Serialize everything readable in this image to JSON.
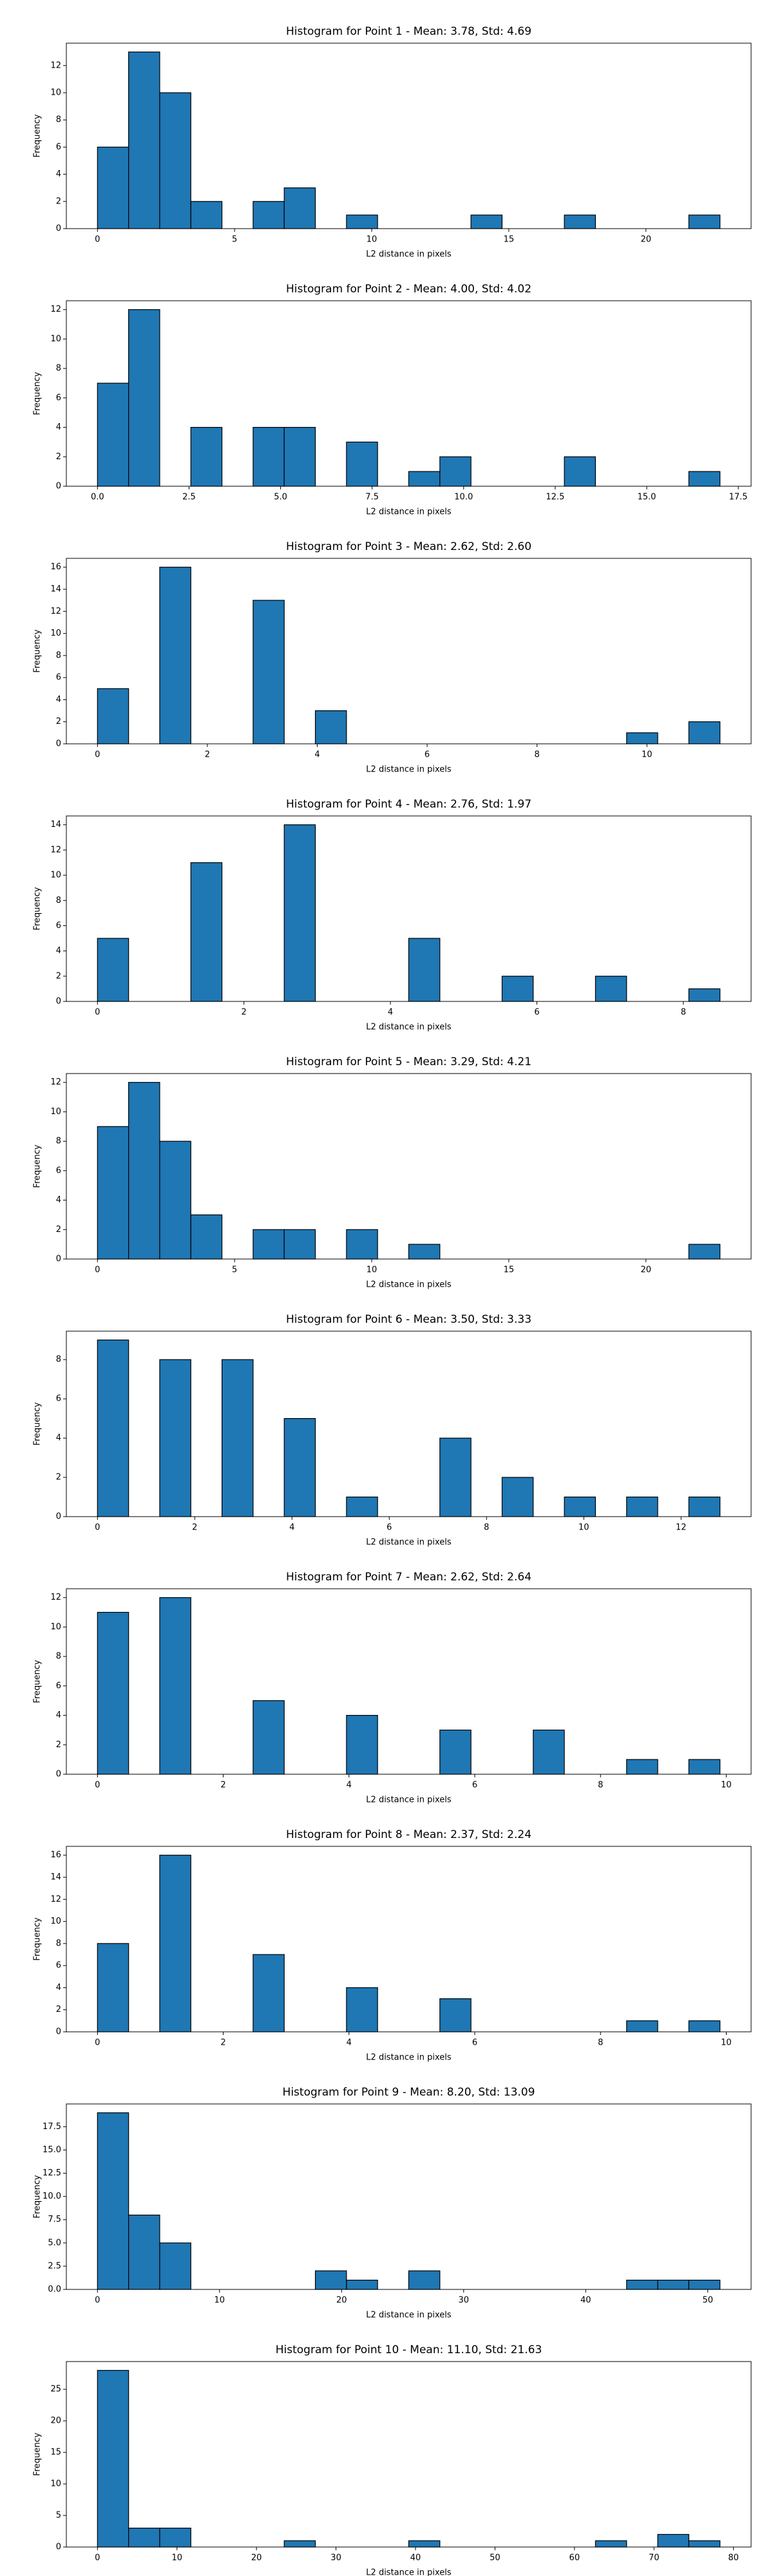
{
  "chart_data": [
    {
      "type": "histogram",
      "title": "Histogram for Point 1 - Mean: 3.78, Std: 4.69",
      "x_label": "L2 distance in pixels",
      "y_label": "Frequency",
      "color": "#1f77b4",
      "bins": [
        0,
        1.135,
        2.27,
        3.405,
        4.54,
        5.675,
        6.81,
        7.945,
        9.08,
        10.215,
        11.35,
        12.485,
        13.62,
        14.755,
        15.89,
        17.025,
        18.16,
        19.295,
        20.43,
        21.565,
        22.7
      ],
      "counts": [
        6,
        13,
        10,
        2,
        0,
        2,
        3,
        0,
        1,
        0,
        0,
        0,
        1,
        0,
        0,
        1,
        0,
        0,
        0,
        1
      ],
      "xlim": [
        -1.135,
        23.835
      ],
      "ylim": [
        0,
        13.65
      ],
      "xticks": [
        0,
        5,
        10,
        15,
        20
      ],
      "yticks": [
        0,
        2,
        4,
        6,
        8,
        10,
        12
      ]
    },
    {
      "type": "histogram",
      "title": "Histogram for Point 2 - Mean: 4.00, Std: 4.02",
      "x_label": "L2 distance in pixels",
      "y_label": "Frequency",
      "color": "#1f77b4",
      "bins": [
        0,
        0.85,
        1.7,
        2.55,
        3.4,
        4.25,
        5.1,
        5.95,
        6.8,
        7.65,
        8.5,
        9.35,
        10.2,
        11.05,
        11.9,
        12.75,
        13.6,
        14.45,
        15.3,
        16.15,
        17
      ],
      "counts": [
        7,
        12,
        0,
        4,
        0,
        4,
        4,
        0,
        3,
        0,
        1,
        2,
        0,
        0,
        0,
        2,
        0,
        0,
        0,
        1
      ],
      "xlim": [
        -0.85,
        17.85
      ],
      "ylim": [
        0,
        12.6
      ],
      "xticks": [
        {
          "value": 0,
          "label": "0.0"
        },
        2.5,
        {
          "value": 5,
          "label": "5.0"
        },
        7.5,
        {
          "value": 10,
          "label": "10.0"
        },
        12.5,
        {
          "value": 15,
          "label": "15.0"
        },
        17.5
      ],
      "yticks": [
        0,
        2,
        4,
        6,
        8,
        10,
        12
      ]
    },
    {
      "type": "histogram",
      "title": "Histogram for Point 3 - Mean: 2.62, Std: 2.60",
      "x_label": "L2 distance in pixels",
      "y_label": "Frequency",
      "color": "#1f77b4",
      "bins": [
        0,
        0.5665,
        1.133,
        1.6995,
        2.266,
        2.8325,
        3.399,
        3.9655,
        4.532,
        5.0985,
        5.665,
        6.2315,
        6.798,
        7.3645,
        7.931,
        8.4975,
        9.064,
        9.6305,
        10.197,
        10.7635,
        11.33
      ],
      "counts": [
        5,
        0,
        16,
        0,
        0,
        13,
        0,
        3,
        0,
        0,
        0,
        0,
        0,
        0,
        0,
        0,
        0,
        1,
        0,
        2
      ],
      "xlim": [
        -0.5665,
        11.8965
      ],
      "ylim": [
        0,
        16.8
      ],
      "xticks": [
        0,
        2,
        4,
        6,
        8,
        10
      ],
      "yticks": [
        0,
        2,
        4,
        6,
        8,
        10,
        12,
        14,
        16
      ]
    },
    {
      "type": "histogram",
      "title": "Histogram for Point 4 - Mean: 2.76, Std: 1.97",
      "x_label": "L2 distance in pixels",
      "y_label": "Frequency",
      "color": "#1f77b4",
      "bins": [
        0,
        0.425,
        0.85,
        1.275,
        1.7,
        2.125,
        2.55,
        2.975,
        3.4,
        3.825,
        4.25,
        4.675,
        5.1,
        5.525,
        5.95,
        6.375,
        6.8,
        7.225,
        7.65,
        8.075,
        8.5
      ],
      "counts": [
        5,
        0,
        0,
        11,
        0,
        0,
        14,
        0,
        0,
        0,
        5,
        0,
        0,
        2,
        0,
        0,
        2,
        0,
        0,
        1
      ],
      "xlim": [
        -0.425,
        8.925
      ],
      "ylim": [
        0,
        14.7
      ],
      "xticks": [
        0,
        2,
        4,
        6,
        8
      ],
      "yticks": [
        0,
        2,
        4,
        6,
        8,
        10,
        12,
        14
      ]
    },
    {
      "type": "histogram",
      "title": "Histogram for Point 5 - Mean: 3.29, Std: 4.21",
      "x_label": "L2 distance in pixels",
      "y_label": "Frequency",
      "color": "#1f77b4",
      "bins": [
        0,
        1.135,
        2.27,
        3.405,
        4.54,
        5.675,
        6.81,
        7.945,
        9.08,
        10.215,
        11.35,
        12.485,
        13.62,
        14.755,
        15.89,
        17.025,
        18.16,
        19.295,
        20.43,
        21.565,
        22.7
      ],
      "counts": [
        9,
        12,
        8,
        3,
        0,
        2,
        2,
        0,
        2,
        0,
        1,
        0,
        0,
        0,
        0,
        0,
        0,
        0,
        0,
        1
      ],
      "xlim": [
        -1.135,
        23.835
      ],
      "ylim": [
        0,
        12.6
      ],
      "xticks": [
        0,
        5,
        10,
        15,
        20
      ],
      "yticks": [
        0,
        2,
        4,
        6,
        8,
        10,
        12
      ]
    },
    {
      "type": "histogram",
      "title": "Histogram for Point 6 - Mean: 3.50, Std: 3.33",
      "x_label": "L2 distance in pixels",
      "y_label": "Frequency",
      "color": "#1f77b4",
      "bins": [
        0,
        0.64,
        1.28,
        1.92,
        2.56,
        3.2,
        3.84,
        4.48,
        5.12,
        5.76,
        6.4,
        7.04,
        7.68,
        8.32,
        8.96,
        9.6,
        10.24,
        10.88,
        11.52,
        12.16,
        12.8
      ],
      "counts": [
        9,
        0,
        8,
        0,
        8,
        0,
        5,
        0,
        1,
        0,
        0,
        4,
        0,
        2,
        0,
        1,
        0,
        1,
        0,
        1
      ],
      "xlim": [
        -0.64,
        13.44
      ],
      "ylim": [
        0,
        9.45
      ],
      "xticks": [
        0,
        2,
        4,
        6,
        8,
        10,
        12
      ],
      "yticks": [
        0,
        2,
        4,
        6,
        8
      ]
    },
    {
      "type": "histogram",
      "title": "Histogram for Point 7 - Mean: 2.62, Std: 2.64",
      "x_label": "L2 distance in pixels",
      "y_label": "Frequency",
      "color": "#1f77b4",
      "bins": [
        0,
        0.495,
        0.99,
        1.485,
        1.98,
        2.475,
        2.97,
        3.465,
        3.96,
        4.455,
        4.95,
        5.445,
        5.94,
        6.435,
        6.93,
        7.425,
        7.92,
        8.415,
        8.91,
        9.405,
        9.9
      ],
      "counts": [
        11,
        0,
        12,
        0,
        0,
        5,
        0,
        0,
        4,
        0,
        0,
        3,
        0,
        0,
        3,
        0,
        0,
        1,
        0,
        1
      ],
      "xlim": [
        -0.495,
        10.395
      ],
      "ylim": [
        0,
        12.6
      ],
      "xticks": [
        0,
        2,
        4,
        6,
        8,
        10
      ],
      "yticks": [
        0,
        2,
        4,
        6,
        8,
        10,
        12
      ]
    },
    {
      "type": "histogram",
      "title": "Histogram for Point 8 - Mean: 2.37, Std: 2.24",
      "x_label": "L2 distance in pixels",
      "y_label": "Frequency",
      "color": "#1f77b4",
      "bins": [
        0,
        0.495,
        0.99,
        1.485,
        1.98,
        2.475,
        2.97,
        3.465,
        3.96,
        4.455,
        4.95,
        5.445,
        5.94,
        6.435,
        6.93,
        7.425,
        7.92,
        8.415,
        8.91,
        9.405,
        9.9
      ],
      "counts": [
        8,
        0,
        16,
        0,
        0,
        7,
        0,
        0,
        4,
        0,
        0,
        3,
        0,
        0,
        0,
        0,
        0,
        1,
        0,
        1
      ],
      "xlim": [
        -0.495,
        10.395
      ],
      "ylim": [
        0,
        16.8
      ],
      "xticks": [
        0,
        2,
        4,
        6,
        8,
        10
      ],
      "yticks": [
        0,
        2,
        4,
        6,
        8,
        10,
        12,
        14,
        16
      ]
    },
    {
      "type": "histogram",
      "title": "Histogram for Point 9 - Mean: 8.20, Std: 13.09",
      "x_label": "L2 distance in pixels",
      "y_label": "Frequency",
      "color": "#1f77b4",
      "bins": [
        0,
        2.55,
        5.1,
        7.65,
        10.2,
        12.75,
        15.3,
        17.85,
        20.4,
        22.95,
        25.5,
        28.05,
        30.6,
        33.15,
        35.7,
        38.25,
        40.8,
        43.35,
        45.9,
        48.45,
        51
      ],
      "counts": [
        19,
        8,
        5,
        0,
        0,
        0,
        0,
        2,
        1,
        0,
        2,
        0,
        0,
        0,
        0,
        0,
        0,
        1,
        1,
        1
      ],
      "xlim": [
        -2.55,
        53.55
      ],
      "ylim": [
        0,
        19.95
      ],
      "xticks": [
        0,
        10,
        20,
        30,
        40,
        50
      ],
      "yticks": [
        {
          "value": 0,
          "label": "0.0"
        },
        2.5,
        {
          "value": 5,
          "label": "5.0"
        },
        7.5,
        {
          "value": 10,
          "label": "10.0"
        },
        12.5,
        {
          "value": 15,
          "label": "15.0"
        },
        17.5
      ]
    },
    {
      "type": "histogram",
      "title": "Histogram for Point 10 - Mean: 11.10, Std: 21.63",
      "x_label": "L2 distance in pixels",
      "y_label": "Frequency",
      "color": "#1f77b4",
      "bins": [
        0,
        3.915,
        7.83,
        11.745,
        15.66,
        19.575,
        23.49,
        27.405,
        31.32,
        35.235,
        39.15,
        43.065,
        46.98,
        50.895,
        54.81,
        58.725,
        62.64,
        66.555,
        70.47,
        74.385,
        78.3
      ],
      "counts": [
        28,
        3,
        3,
        0,
        0,
        0,
        1,
        0,
        0,
        0,
        1,
        0,
        0,
        0,
        0,
        0,
        1,
        0,
        2,
        1
      ],
      "xlim": [
        -3.915,
        82.215
      ],
      "ylim": [
        0,
        29.4
      ],
      "xticks": [
        0,
        10,
        20,
        30,
        40,
        50,
        60,
        70,
        80
      ],
      "yticks": [
        0,
        5,
        10,
        15,
        20,
        25
      ]
    }
  ]
}
